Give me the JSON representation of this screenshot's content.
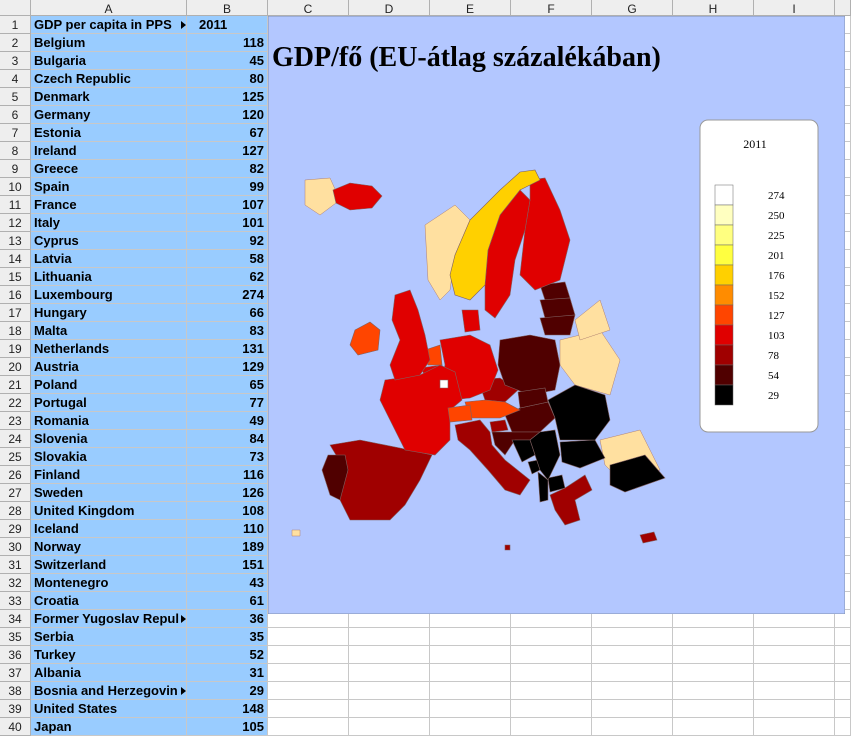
{
  "columns": [
    "A",
    "B",
    "C",
    "D",
    "E",
    "F",
    "G",
    "H",
    "I"
  ],
  "rows": [
    {
      "number": 1,
      "label": "GDP per capita in PPS",
      "value": 2011
    },
    {
      "number": 2,
      "label": "Belgium",
      "value": 118
    },
    {
      "number": 3,
      "label": "Bulgaria",
      "value": 45
    },
    {
      "number": 4,
      "label": "Czech Republic",
      "value": 80
    },
    {
      "number": 5,
      "label": "Denmark",
      "value": 125
    },
    {
      "number": 6,
      "label": "Germany",
      "value": 120
    },
    {
      "number": 7,
      "label": "Estonia",
      "value": 67
    },
    {
      "number": 8,
      "label": "Ireland",
      "value": 127
    },
    {
      "number": 9,
      "label": "Greece",
      "value": 82
    },
    {
      "number": 10,
      "label": "Spain",
      "value": 99
    },
    {
      "number": 11,
      "label": "France",
      "value": 107
    },
    {
      "number": 12,
      "label": "Italy",
      "value": 101
    },
    {
      "number": 13,
      "label": "Cyprus",
      "value": 92
    },
    {
      "number": 14,
      "label": "Latvia",
      "value": 58
    },
    {
      "number": 15,
      "label": "Lithuania",
      "value": 62
    },
    {
      "number": 16,
      "label": "Luxembourg",
      "value": 274
    },
    {
      "number": 17,
      "label": "Hungary",
      "value": 66
    },
    {
      "number": 18,
      "label": "Malta",
      "value": 83
    },
    {
      "number": 19,
      "label": "Netherlands",
      "value": 131
    },
    {
      "number": 20,
      "label": "Austria",
      "value": 129
    },
    {
      "number": 21,
      "label": "Poland",
      "value": 65
    },
    {
      "number": 22,
      "label": "Portugal",
      "value": 77
    },
    {
      "number": 23,
      "label": "Romania",
      "value": 49
    },
    {
      "number": 24,
      "label": "Slovenia",
      "value": 84
    },
    {
      "number": 25,
      "label": "Slovakia",
      "value": 73
    },
    {
      "number": 26,
      "label": "Finland",
      "value": 116
    },
    {
      "number": 27,
      "label": "Sweden",
      "value": 126
    },
    {
      "number": 28,
      "label": "United Kingdom",
      "value": 108
    },
    {
      "number": 29,
      "label": "Iceland",
      "value": 110
    },
    {
      "number": 30,
      "label": "Norway",
      "value": 189
    },
    {
      "number": 31,
      "label": "Switzerland",
      "value": 151
    },
    {
      "number": 32,
      "label": "Montenegro",
      "value": 43
    },
    {
      "number": 33,
      "label": "Croatia",
      "value": 61
    },
    {
      "number": 34,
      "label": "Former Yugoslav Repul",
      "value": 36
    },
    {
      "number": 35,
      "label": "Serbia",
      "value": 35
    },
    {
      "number": 36,
      "label": "Turkey",
      "value": 52
    },
    {
      "number": 37,
      "label": "Albania",
      "value": 31
    },
    {
      "number": 38,
      "label": "Bosnia and Herzegovin",
      "value": 29
    },
    {
      "number": 39,
      "label": "United States",
      "value": 148
    },
    {
      "number": 40,
      "label": "Japan",
      "value": 105
    }
  ],
  "chart": {
    "title": "GDP/fő (EU-átlag százalékában)",
    "legend": {
      "title": "2011",
      "items": [
        {
          "label": 274,
          "color": "#ffffff"
        },
        {
          "label": 250,
          "color": "#ffffc0"
        },
        {
          "label": 225,
          "color": "#ffff80"
        },
        {
          "label": 201,
          "color": "#ffff40"
        },
        {
          "label": 176,
          "color": "#ffd000"
        },
        {
          "label": 152,
          "color": "#ff8c00"
        },
        {
          "label": 127,
          "color": "#ff4500"
        },
        {
          "label": 103,
          "color": "#e00000"
        },
        {
          "label": 78,
          "color": "#a00000"
        },
        {
          "label": 54,
          "color": "#500000"
        },
        {
          "label": 29,
          "color": "#000000"
        }
      ]
    }
  }
}
